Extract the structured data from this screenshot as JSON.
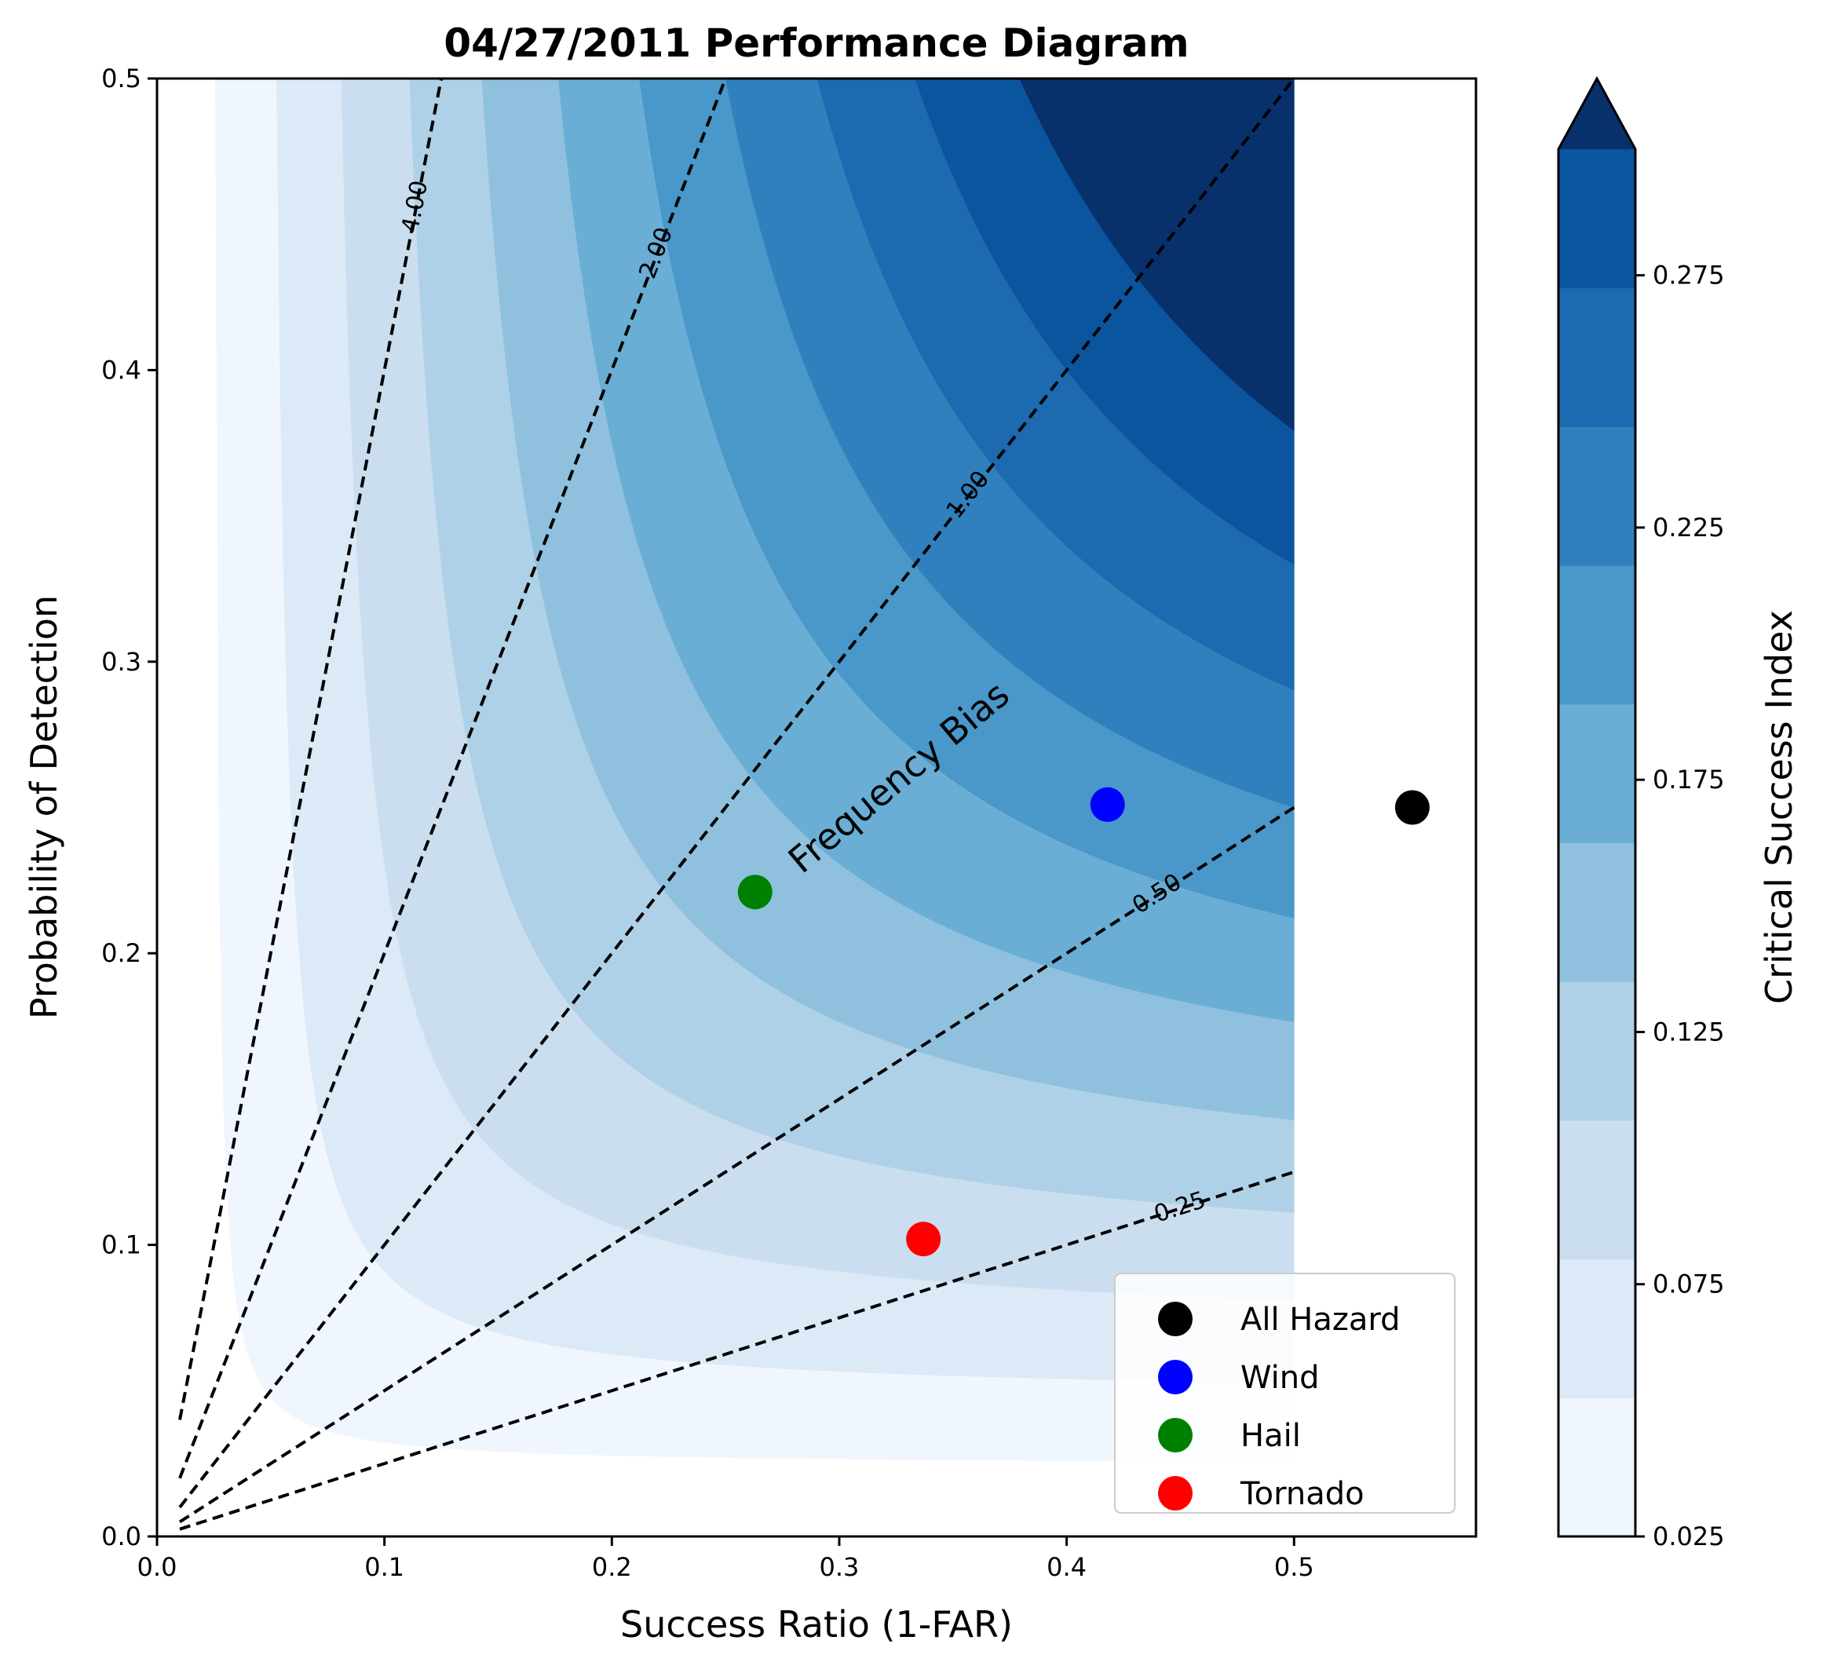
{
  "chart_data": {
    "type": "scatter",
    "title": "04/27/2011 Performance Diagram",
    "xlabel": "Success Ratio (1-FAR)",
    "ylabel": "Probability of Detection",
    "xlim": [
      0.0,
      0.58
    ],
    "ylim": [
      0.0,
      0.5
    ],
    "x_ticks": [
      "0.0",
      "0.1",
      "0.2",
      "0.3",
      "0.4",
      "0.5"
    ],
    "y_ticks": [
      "0.0",
      "0.1",
      "0.2",
      "0.3",
      "0.4",
      "0.5"
    ],
    "series": [
      {
        "name": "All Hazard",
        "color": "#000000",
        "x": [
          0.552
        ],
        "y": [
          0.25
        ]
      },
      {
        "name": "Wind",
        "color": "#0000ff",
        "x": [
          0.418
        ],
        "y": [
          0.251
        ]
      },
      {
        "name": "Hail",
        "color": "#008000",
        "x": [
          0.263
        ],
        "y": [
          0.221
        ]
      },
      {
        "name": "Tornado",
        "color": "#ff0000",
        "x": [
          0.337
        ],
        "y": [
          0.102
        ]
      }
    ],
    "legend_position": "lower-right",
    "frequency_bias": {
      "label": "Frequency Bias",
      "values": [
        0.25,
        0.5,
        1.0,
        2.0,
        4.0
      ],
      "labels": [
        "0.25",
        "0.50",
        "1.00",
        "2.00",
        "4.00"
      ]
    },
    "csi_contours": {
      "levels": [
        0.025,
        0.05,
        0.075,
        0.1,
        0.125,
        0.15,
        0.175,
        0.2,
        0.225,
        0.25,
        0.275,
        0.3
      ],
      "colors": [
        "#f0f6fd",
        "#dce9f6",
        "#cadeef",
        "#afd1e7",
        "#8fc1de",
        "#6aaed6",
        "#4a97c9",
        "#3080bd",
        "#1d6ab0",
        "#0b559f",
        "#08306b"
      ],
      "extend": "max",
      "domain_x": [
        0.0,
        0.5
      ]
    },
    "colorbar": {
      "label": "Critical Success Index",
      "ticks": [
        "0.025",
        "0.075",
        "0.125",
        "0.175",
        "0.225",
        "0.275"
      ]
    }
  }
}
